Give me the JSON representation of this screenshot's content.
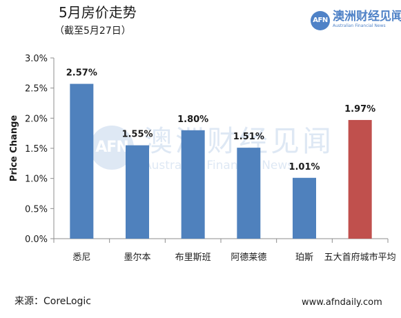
{
  "header": {
    "title": "5月房价走势",
    "subtitle": "（截至5月27日）"
  },
  "logo": {
    "mark": "AFN",
    "name_cn": "澳洲财经见闻",
    "name_en": "Australian Financial News"
  },
  "watermark": {
    "mark": "AFN",
    "name_cn": "澳洲财经见闻",
    "name_en": "Australian Financial News"
  },
  "chart_data": {
    "type": "bar",
    "title": "",
    "xlabel": "",
    "ylabel": "Price Change",
    "categories": [
      "悉尼",
      "墨尔本",
      "布里斯班",
      "阿德莱德",
      "珀斯",
      "五大首府城市平均"
    ],
    "values": [
      2.57,
      1.55,
      1.8,
      1.51,
      1.01,
      1.97
    ],
    "value_labels": [
      "2.57%",
      "1.55%",
      "1.80%",
      "1.51%",
      "1.01%",
      "1.97%"
    ],
    "y_ticks": [
      0.0,
      0.5,
      1.0,
      1.5,
      2.0,
      2.5,
      3.0
    ],
    "y_tick_labels": [
      "0.0%",
      "0.5%",
      "1.0%",
      "1.5%",
      "2.0%",
      "2.5%",
      "3.0%"
    ],
    "ylim": [
      0.0,
      3.0
    ],
    "grid": false,
    "legend": "none",
    "colors": [
      "#4f81bd",
      "#4f81bd",
      "#4f81bd",
      "#4f81bd",
      "#4f81bd",
      "#c0504d"
    ]
  },
  "footer": {
    "source": "来源：CoreLogic",
    "website": "www.afndaily.com"
  }
}
